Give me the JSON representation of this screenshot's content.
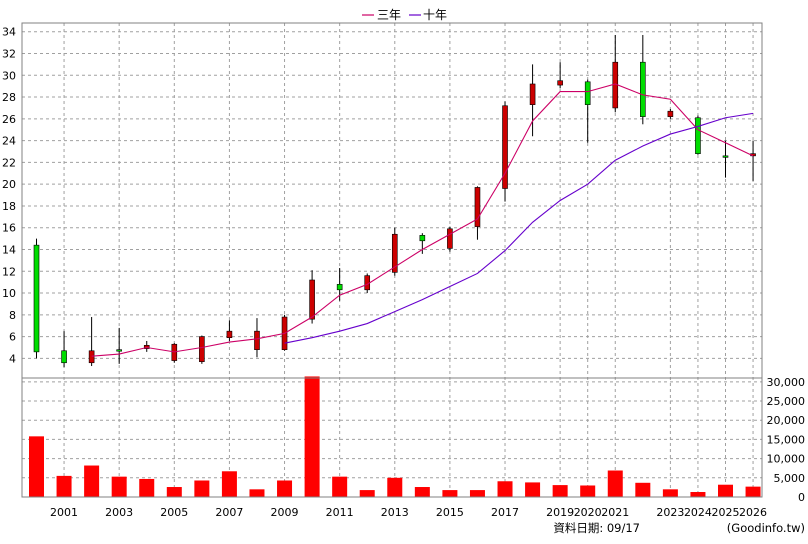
{
  "chart_data": [
    {
      "type": "candlestick",
      "legend": {
        "placement": "top-center",
        "items": [
          {
            "name": "三年",
            "color": "#cc0066"
          },
          {
            "name": "十年",
            "color": "#6600cc"
          }
        ]
      },
      "grid": true,
      "ylim": [
        2.2,
        34.8
      ],
      "y_ticks": [
        4,
        6,
        8,
        10,
        12,
        14,
        16,
        18,
        20,
        22,
        24,
        26,
        28,
        30,
        32,
        34
      ],
      "x_ticks": [
        "2001",
        "2003",
        "2005",
        "2007",
        "2009",
        "2011",
        "2013",
        "2015",
        "2017",
        "2019",
        "2020",
        "2021",
        "2023",
        "2024",
        "2025",
        "2026"
      ],
      "candles": [
        {
          "period": "2000",
          "open": 4.6,
          "high": 15.0,
          "low": 4.0,
          "close": 14.4
        },
        {
          "period": "2001",
          "open": 3.6,
          "high": 6.5,
          "low": 3.2,
          "close": 4.7
        },
        {
          "period": "2002",
          "open": 4.7,
          "high": 7.8,
          "low": 3.3,
          "close": 3.6
        },
        {
          "period": "2003",
          "open": 4.8,
          "high": 6.8,
          "low": 3.5,
          "close": 4.8
        },
        {
          "period": "2004",
          "open": 5.2,
          "high": 5.6,
          "low": 4.6,
          "close": 4.9
        },
        {
          "period": "2005",
          "open": 5.3,
          "high": 5.4,
          "low": 3.6,
          "close": 3.8
        },
        {
          "period": "2006",
          "open": 6.0,
          "high": 6.1,
          "low": 3.5,
          "close": 3.7
        },
        {
          "period": "2007",
          "open": 6.5,
          "high": 7.5,
          "low": 5.6,
          "close": 5.9
        },
        {
          "period": "2008",
          "open": 6.5,
          "high": 7.7,
          "low": 4.1,
          "close": 4.8
        },
        {
          "period": "2009",
          "open": 7.8,
          "high": 8.0,
          "low": 4.7,
          "close": 4.8
        },
        {
          "period": "2010",
          "open": 11.2,
          "high": 12.1,
          "low": 7.2,
          "close": 7.6
        },
        {
          "period": "2011",
          "open": 10.3,
          "high": 12.3,
          "low": 9.3,
          "close": 10.8
        },
        {
          "period": "2012",
          "open": 11.6,
          "high": 11.8,
          "low": 10.0,
          "close": 10.3
        },
        {
          "period": "2013",
          "open": 15.4,
          "high": 16.0,
          "low": 11.6,
          "close": 11.9
        },
        {
          "period": "2014",
          "open": 14.8,
          "high": 15.5,
          "low": 13.6,
          "close": 15.3
        },
        {
          "period": "2015",
          "open": 15.9,
          "high": 16.1,
          "low": 13.8,
          "close": 14.1
        },
        {
          "period": "2016",
          "open": 19.7,
          "high": 19.8,
          "low": 14.9,
          "close": 16.1
        },
        {
          "period": "2017",
          "open": 27.2,
          "high": 27.6,
          "low": 18.4,
          "close": 19.6
        },
        {
          "period": "2018",
          "open": 29.2,
          "high": 31.0,
          "low": 24.4,
          "close": 27.3
        },
        {
          "period": "2019",
          "open": 29.5,
          "high": 31.2,
          "low": 28.8,
          "close": 29.1
        },
        {
          "period": "2020",
          "open": 27.3,
          "high": 29.6,
          "low": 23.8,
          "close": 29.4
        },
        {
          "period": "2021",
          "open": 31.2,
          "high": 33.7,
          "low": 26.6,
          "close": 27.0
        },
        {
          "period": "2022",
          "open": 26.2,
          "high": 33.7,
          "low": 25.5,
          "close": 31.2
        },
        {
          "period": "2023",
          "open": 26.7,
          "high": 26.9,
          "low": 26.0,
          "close": 26.2
        },
        {
          "period": "2024",
          "open": 22.8,
          "high": 26.3,
          "low": 22.7,
          "close": 26.1
        },
        {
          "period": "2025",
          "open": 22.6,
          "high": 24.0,
          "low": 20.6,
          "close": 22.6
        },
        {
          "period": "2026",
          "open": 22.8,
          "high": 24.0,
          "low": 20.3,
          "close": 22.6
        }
      ],
      "series": [
        {
          "name": "三年",
          "points": [
            [
              "2002",
              4.2
            ],
            [
              "2003",
              4.4
            ],
            [
              "2004",
              5.0
            ],
            [
              "2005",
              4.6
            ],
            [
              "2006",
              5.0
            ],
            [
              "2007",
              5.5
            ],
            [
              "2008",
              5.8
            ],
            [
              "2009",
              6.3
            ],
            [
              "2010",
              7.8
            ],
            [
              "2011",
              9.8
            ],
            [
              "2012",
              10.8
            ],
            [
              "2013",
              12.4
            ],
            [
              "2014",
              14.0
            ],
            [
              "2015",
              15.4
            ],
            [
              "2016",
              16.8
            ],
            [
              "2017",
              21.0
            ],
            [
              "2018",
              25.8
            ],
            [
              "2019",
              28.5
            ],
            [
              "2020",
              28.5
            ],
            [
              "2021",
              29.2
            ],
            [
              "2022",
              28.2
            ],
            [
              "2023",
              27.8
            ],
            [
              "2024",
              25.0
            ],
            [
              "2025",
              23.8
            ],
            [
              "2026",
              22.6
            ]
          ]
        },
        {
          "name": "十年",
          "points": [
            [
              "2009",
              5.4
            ],
            [
              "2010",
              5.9
            ],
            [
              "2011",
              6.5
            ],
            [
              "2012",
              7.2
            ],
            [
              "2013",
              8.3
            ],
            [
              "2014",
              9.4
            ],
            [
              "2015",
              10.6
            ],
            [
              "2016",
              11.8
            ],
            [
              "2017",
              13.9
            ],
            [
              "2018",
              16.5
            ],
            [
              "2019",
              18.5
            ],
            [
              "2020",
              20.0
            ],
            [
              "2021",
              22.2
            ],
            [
              "2022",
              23.5
            ],
            [
              "2023",
              24.6
            ],
            [
              "2024",
              25.3
            ],
            [
              "2025",
              26.1
            ],
            [
              "2026",
              26.5
            ]
          ]
        }
      ]
    },
    {
      "type": "bar",
      "ylim": [
        0,
        31000
      ],
      "y_ticks": [
        "0",
        "5,000",
        "10,000",
        "15,000",
        "20,000",
        "25,000",
        "30,000"
      ],
      "y_tick_values": [
        0,
        5000,
        10000,
        15000,
        20000,
        25000,
        30000
      ],
      "bar_color": "#ff0000",
      "categories": [
        "2000",
        "2001",
        "2002",
        "2003",
        "2004",
        "2005",
        "2006",
        "2007",
        "2008",
        "2009",
        "2010",
        "2011",
        "2012",
        "2013",
        "2014",
        "2015",
        "2016",
        "2017",
        "2018",
        "2019",
        "2020",
        "2021",
        "2022",
        "2023",
        "2024",
        "2025",
        "2026"
      ],
      "values": [
        15800,
        5500,
        8200,
        5300,
        4700,
        2600,
        4300,
        6700,
        2000,
        4300,
        31400,
        5300,
        1800,
        5000,
        2600,
        1800,
        1800,
        4100,
        3800,
        3100,
        3000,
        6900,
        3700,
        2000,
        1300,
        3200,
        2700
      ]
    }
  ],
  "footer": {
    "date_label": "資料日期: 09/17",
    "source": "(Goodinfo.tw)"
  }
}
